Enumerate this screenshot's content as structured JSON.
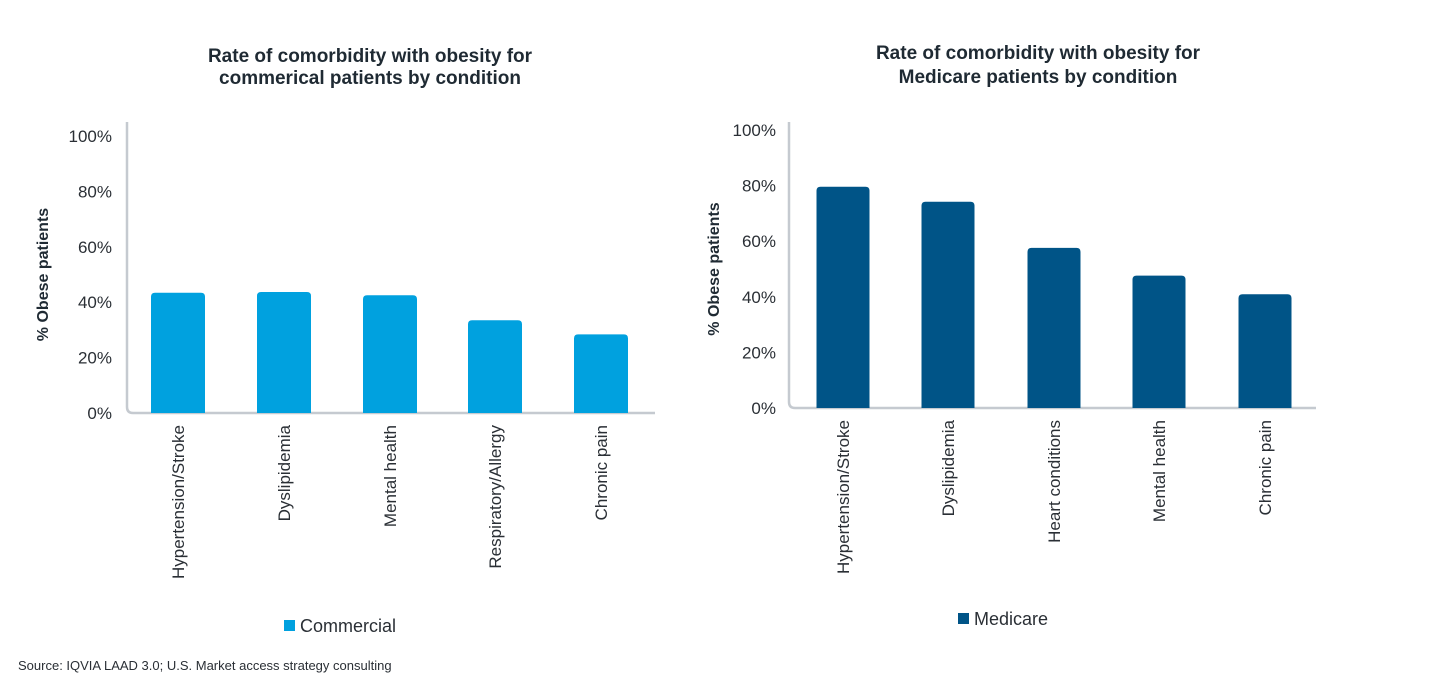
{
  "chart_data": [
    {
      "type": "bar",
      "title_lines": [
        "Rate of comorbidity with obesity for",
        "commerical patients by condition"
      ],
      "xlabel": "",
      "ylabel": "% Obese patients",
      "ylim": [
        0,
        100
      ],
      "yticks": [
        "0%",
        "20%",
        "40%",
        "60%",
        "80%",
        "100%"
      ],
      "categories": [
        "Hypertension/Stroke",
        "Dyslipidemia",
        "Mental health",
        "Respiratory/Allergy",
        "Chronic pain"
      ],
      "series": [
        {
          "name": "Commercial",
          "color": "#00A1DF",
          "values": [
            43.4,
            43.7,
            42.5,
            33.5,
            28.4
          ]
        }
      ],
      "legend": "bottom",
      "grid": false
    },
    {
      "type": "bar",
      "title_lines": [
        "Rate of comorbidity with obesity for",
        "Medicare patients by condition"
      ],
      "xlabel": "",
      "ylabel": "% Obese patients",
      "ylim": [
        0,
        100
      ],
      "yticks": [
        "0%",
        "20%",
        "40%",
        "60%",
        "80%",
        "100%"
      ],
      "categories": [
        "Hypertension/Stroke",
        "Dyslipidemia",
        "Heart conditions",
        "Mental health",
        "Chronic pain"
      ],
      "series": [
        {
          "name": "Medicare",
          "color": "#005487",
          "values": [
            79.6,
            74.2,
            57.6,
            47.6,
            40.9
          ]
        }
      ],
      "legend": "bottom",
      "grid": false
    }
  ],
  "source": "Source: IQVIA LAAD 3.0; U.S. Market access strategy consulting"
}
